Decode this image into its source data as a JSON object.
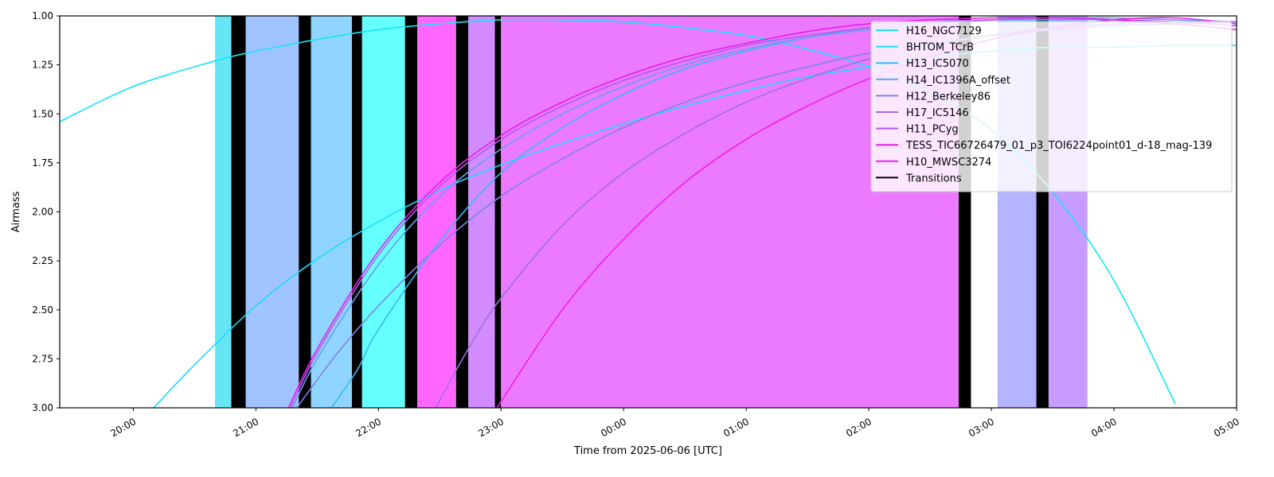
{
  "chart_data": {
    "type": "line",
    "title": "",
    "xlabel": "Time from 2025-06-06 [UTC]",
    "ylabel": "Airmass",
    "xlim": [
      "2025-06-06 19:24",
      "2025-06-07 05:00"
    ],
    "ylim": [
      3.0,
      1.0
    ],
    "y_inverted": true,
    "x_ticks": [
      {
        "time": "2025-06-06 20:00",
        "label": "20:00"
      },
      {
        "time": "2025-06-06 21:00",
        "label": "21:00"
      },
      {
        "time": "2025-06-06 22:00",
        "label": "22:00"
      },
      {
        "time": "2025-06-06 23:00",
        "label": "23:00"
      },
      {
        "time": "2025-06-07 00:00",
        "label": "00:00"
      },
      {
        "time": "2025-06-07 01:00",
        "label": "01:00"
      },
      {
        "time": "2025-06-07 02:00",
        "label": "02:00"
      },
      {
        "time": "2025-06-07 03:00",
        "label": "03:00"
      },
      {
        "time": "2025-06-07 04:00",
        "label": "04:00"
      },
      {
        "time": "2025-06-07 05:00",
        "label": "05:00"
      }
    ],
    "y_ticks": [
      {
        "value": 1.0,
        "label": "1.00"
      },
      {
        "value": 1.25,
        "label": "1.25"
      },
      {
        "value": 1.5,
        "label": "1.50"
      },
      {
        "value": 1.75,
        "label": "1.75"
      },
      {
        "value": 2.0,
        "label": "2.00"
      },
      {
        "value": 2.25,
        "label": "2.25"
      },
      {
        "value": 2.5,
        "label": "2.50"
      },
      {
        "value": 2.75,
        "label": "2.75"
      },
      {
        "value": 3.0,
        "label": "3.00"
      }
    ],
    "grid": false,
    "legend_position": "top-right",
    "observation_blocks": [
      {
        "start": "2025-06-06 20:40",
        "end": "2025-06-06 20:48",
        "color": "#66e6f5"
      },
      {
        "start": "2025-06-06 20:48",
        "end": "2025-06-06 20:55",
        "color": "#000000"
      },
      {
        "start": "2025-06-06 20:55",
        "end": "2025-06-06 21:21",
        "color": "#a0c4ff"
      },
      {
        "start": "2025-06-06 21:21",
        "end": "2025-06-06 21:27",
        "color": "#000000"
      },
      {
        "start": "2025-06-06 21:27",
        "end": "2025-06-06 21:47",
        "color": "#90d5ff"
      },
      {
        "start": "2025-06-06 21:47",
        "end": "2025-06-06 21:52",
        "color": "#000000"
      },
      {
        "start": "2025-06-06 21:52",
        "end": "2025-06-06 22:13",
        "color": "#66ffff"
      },
      {
        "start": "2025-06-06 22:13",
        "end": "2025-06-06 22:19",
        "color": "#000000"
      },
      {
        "start": "2025-06-06 22:19",
        "end": "2025-06-06 22:38",
        "color": "#ff66ff"
      },
      {
        "start": "2025-06-06 22:38",
        "end": "2025-06-06 22:44",
        "color": "#000000"
      },
      {
        "start": "2025-06-06 22:44",
        "end": "2025-06-06 22:57",
        "color": "#d28cff"
      },
      {
        "start": "2025-06-06 22:57",
        "end": "2025-06-06 23:00",
        "color": "#000000"
      },
      {
        "start": "2025-06-06 23:00",
        "end": "2025-06-07 02:44",
        "color": "#eb7aff"
      },
      {
        "start": "2025-06-07 02:44",
        "end": "2025-06-07 02:50",
        "color": "#000000"
      },
      {
        "start": "2025-06-07 03:03",
        "end": "2025-06-07 03:22",
        "color": "#b4b4ff"
      },
      {
        "start": "2025-06-07 03:22",
        "end": "2025-06-07 03:28",
        "color": "#000000"
      },
      {
        "start": "2025-06-07 03:28",
        "end": "2025-06-07 03:47",
        "color": "#c89cff"
      }
    ],
    "series": [
      {
        "name": "H16_NGC7129",
        "color": "#14e6f5",
        "points": [
          [
            "2025-06-06 19:24",
            1.54
          ],
          [
            "2025-06-06 20:00",
            1.36
          ],
          [
            "2025-06-06 20:40",
            1.23
          ],
          [
            "2025-06-06 21:00",
            1.18
          ],
          [
            "2025-06-06 21:30",
            1.12
          ],
          [
            "2025-06-06 22:00",
            1.07
          ],
          [
            "2025-06-06 22:30",
            1.04
          ],
          [
            "2025-06-06 23:00",
            1.02
          ],
          [
            "2025-06-06 23:30",
            1.02
          ],
          [
            "2025-06-07 00:00",
            1.03
          ],
          [
            "2025-06-07 00:30",
            1.06
          ],
          [
            "2025-06-07 01:00",
            1.1
          ],
          [
            "2025-06-07 01:30",
            1.17
          ],
          [
            "2025-06-07 02:00",
            1.26
          ],
          [
            "2025-06-07 02:30",
            1.39
          ],
          [
            "2025-06-07 03:00",
            1.58
          ],
          [
            "2025-06-07 03:30",
            1.9
          ],
          [
            "2025-06-07 04:00",
            2.35
          ],
          [
            "2025-06-07 04:30",
            2.98
          ]
        ]
      },
      {
        "name": "BHTOM_TCrB",
        "color": "#1cdbff",
        "points": [
          [
            "2025-06-06 20:10",
            3.0
          ],
          [
            "2025-06-06 20:30",
            2.78
          ],
          [
            "2025-06-06 21:00",
            2.48
          ],
          [
            "2025-06-06 21:30",
            2.24
          ],
          [
            "2025-06-06 22:00",
            2.05
          ],
          [
            "2025-06-06 22:30",
            1.89
          ],
          [
            "2025-06-06 23:00",
            1.76
          ],
          [
            "2025-06-06 23:30",
            1.65
          ],
          [
            "2025-06-07 00:00",
            1.55
          ],
          [
            "2025-06-07 00:30",
            1.46
          ],
          [
            "2025-06-07 01:00",
            1.38
          ],
          [
            "2025-06-07 01:30",
            1.31
          ],
          [
            "2025-06-07 02:00",
            1.26
          ],
          [
            "2025-06-07 02:30",
            1.21
          ],
          [
            "2025-06-07 03:00",
            1.18
          ],
          [
            "2025-06-07 03:30",
            1.16
          ],
          [
            "2025-06-07 04:00",
            1.16
          ],
          [
            "2025-06-07 04:30",
            1.15
          ],
          [
            "2025-06-07 05:00",
            1.15
          ]
        ]
      },
      {
        "name": "H13_IC5070",
        "color": "#38b8f5",
        "points": [
          [
            "2025-06-06 21:37",
            3.0
          ],
          [
            "2025-06-06 21:50",
            2.8
          ],
          [
            "2025-06-06 22:00",
            2.6
          ],
          [
            "2025-06-06 22:30",
            2.15
          ],
          [
            "2025-06-06 23:00",
            1.8
          ],
          [
            "2025-06-06 23:30",
            1.57
          ],
          [
            "2025-06-07 00:00",
            1.4
          ],
          [
            "2025-06-07 00:30",
            1.27
          ],
          [
            "2025-06-07 01:00",
            1.18
          ],
          [
            "2025-06-07 01:30",
            1.11
          ],
          [
            "2025-06-07 02:00",
            1.06
          ],
          [
            "2025-06-07 02:30",
            1.03
          ],
          [
            "2025-06-07 03:00",
            1.02
          ],
          [
            "2025-06-07 03:30",
            1.02
          ],
          [
            "2025-06-07 04:00",
            1.02
          ],
          [
            "2025-06-07 04:30",
            1.03
          ],
          [
            "2025-06-07 05:00",
            1.05
          ]
        ]
      },
      {
        "name": "H14_IC1396A_offset",
        "color": "#6a9ef0",
        "points": [
          [
            "2025-06-06 21:18",
            3.0
          ],
          [
            "2025-06-06 21:30",
            2.75
          ],
          [
            "2025-06-06 22:00",
            2.27
          ],
          [
            "2025-06-06 22:30",
            1.92
          ],
          [
            "2025-06-06 23:00",
            1.68
          ],
          [
            "2025-06-06 23:30",
            1.5
          ],
          [
            "2025-06-07 00:00",
            1.36
          ],
          [
            "2025-06-07 00:30",
            1.25
          ],
          [
            "2025-06-07 01:00",
            1.17
          ],
          [
            "2025-06-07 01:30",
            1.11
          ],
          [
            "2025-06-07 02:00",
            1.07
          ],
          [
            "2025-06-07 02:30",
            1.04
          ],
          [
            "2025-06-07 03:00",
            1.02
          ],
          [
            "2025-06-07 03:30",
            1.01
          ],
          [
            "2025-06-07 04:00",
            1.01
          ],
          [
            "2025-06-07 04:30",
            1.02
          ],
          [
            "2025-06-07 05:00",
            1.03
          ]
        ]
      },
      {
        "name": "H12_Berkeley86",
        "color": "#8080ee",
        "points": [
          [
            "2025-06-06 21:20",
            3.0
          ],
          [
            "2025-06-06 21:40",
            2.72
          ],
          [
            "2025-06-06 22:00",
            2.48
          ],
          [
            "2025-06-06 22:30",
            2.17
          ],
          [
            "2025-06-06 23:00",
            1.92
          ],
          [
            "2025-06-06 23:30",
            1.73
          ],
          [
            "2025-06-07 00:00",
            1.57
          ],
          [
            "2025-06-07 00:30",
            1.44
          ],
          [
            "2025-06-07 01:00",
            1.34
          ],
          [
            "2025-06-07 01:30",
            1.26
          ],
          [
            "2025-06-07 02:00",
            1.19
          ],
          [
            "2025-06-07 02:30",
            1.14
          ],
          [
            "2025-06-07 03:00",
            1.1
          ],
          [
            "2025-06-07 03:30",
            1.07
          ],
          [
            "2025-06-07 04:00",
            1.05
          ],
          [
            "2025-06-07 04:30",
            1.04
          ],
          [
            "2025-06-07 05:00",
            1.03
          ]
        ]
      },
      {
        "name": "H17_IC5146",
        "color": "#a06ee8",
        "points": [
          [
            "2025-06-06 22:28",
            3.0
          ],
          [
            "2025-06-06 22:45",
            2.68
          ],
          [
            "2025-06-06 23:00",
            2.44
          ],
          [
            "2025-06-06 23:30",
            2.07
          ],
          [
            "2025-06-07 00:00",
            1.8
          ],
          [
            "2025-06-07 00:30",
            1.6
          ],
          [
            "2025-06-07 01:00",
            1.44
          ],
          [
            "2025-06-07 01:30",
            1.32
          ],
          [
            "2025-06-07 02:00",
            1.22
          ],
          [
            "2025-06-07 02:30",
            1.15
          ],
          [
            "2025-06-07 03:00",
            1.1
          ],
          [
            "2025-06-07 03:30",
            1.06
          ],
          [
            "2025-06-07 04:00",
            1.04
          ],
          [
            "2025-06-07 04:30",
            1.03
          ],
          [
            "2025-06-07 05:00",
            1.03
          ]
        ]
      },
      {
        "name": "H11_PCyg",
        "color": "#b45af0",
        "points": [
          [
            "2025-06-06 21:17",
            3.0
          ],
          [
            "2025-06-06 21:30",
            2.72
          ],
          [
            "2025-06-06 22:00",
            2.22
          ],
          [
            "2025-06-06 22:30",
            1.87
          ],
          [
            "2025-06-06 23:00",
            1.63
          ],
          [
            "2025-06-06 23:30",
            1.46
          ],
          [
            "2025-06-07 00:00",
            1.33
          ],
          [
            "2025-06-07 00:30",
            1.23
          ],
          [
            "2025-06-07 01:00",
            1.15
          ],
          [
            "2025-06-07 01:30",
            1.1
          ],
          [
            "2025-06-07 02:00",
            1.06
          ],
          [
            "2025-06-07 02:30",
            1.03
          ],
          [
            "2025-06-07 03:00",
            1.02
          ],
          [
            "2025-06-07 03:30",
            1.01
          ],
          [
            "2025-06-07 04:00",
            1.02
          ],
          [
            "2025-06-07 04:30",
            1.03
          ],
          [
            "2025-06-07 05:00",
            1.05
          ]
        ]
      },
      {
        "name": "TESS_TIC66726479_01_p3_TOI6224point01_d-18_mag-139",
        "color": "#e61ee6",
        "points": [
          [
            "2025-06-06 21:16",
            3.0
          ],
          [
            "2025-06-06 21:30",
            2.7
          ],
          [
            "2025-06-06 22:00",
            2.2
          ],
          [
            "2025-06-06 22:30",
            1.85
          ],
          [
            "2025-06-06 23:00",
            1.61
          ],
          [
            "2025-06-06 23:30",
            1.44
          ],
          [
            "2025-06-07 00:00",
            1.31
          ],
          [
            "2025-06-07 00:30",
            1.21
          ],
          [
            "2025-06-07 01:00",
            1.14
          ],
          [
            "2025-06-07 01:30",
            1.08
          ],
          [
            "2025-06-07 02:00",
            1.04
          ],
          [
            "2025-06-07 02:30",
            1.02
          ],
          [
            "2025-06-07 03:00",
            1.01
          ],
          [
            "2025-06-07 03:30",
            1.01
          ],
          [
            "2025-06-07 04:00",
            1.02
          ],
          [
            "2025-06-07 04:30",
            1.04
          ],
          [
            "2025-06-07 05:00",
            1.07
          ]
        ]
      },
      {
        "name": "H10_MWSC3274",
        "color": "#f01ef0",
        "points": [
          [
            "2025-06-06 22:58",
            3.0
          ],
          [
            "2025-06-06 23:30",
            2.5
          ],
          [
            "2025-06-07 00:00",
            2.14
          ],
          [
            "2025-06-07 00:30",
            1.85
          ],
          [
            "2025-06-07 01:00",
            1.63
          ],
          [
            "2025-06-07 01:30",
            1.46
          ],
          [
            "2025-06-07 02:00",
            1.32
          ],
          [
            "2025-06-07 02:30",
            1.21
          ],
          [
            "2025-06-07 03:00",
            1.12
          ],
          [
            "2025-06-07 03:30",
            1.06
          ],
          [
            "2025-06-07 04:00",
            1.02
          ],
          [
            "2025-06-07 04:30",
            1.01
          ],
          [
            "2025-06-07 05:00",
            1.04
          ]
        ]
      }
    ],
    "legend": [
      {
        "label": "H16_NGC7129",
        "color": "#14e6f5"
      },
      {
        "label": "BHTOM_TCrB",
        "color": "#1cdbff"
      },
      {
        "label": "H13_IC5070",
        "color": "#38b8f5"
      },
      {
        "label": "H14_IC1396A_offset",
        "color": "#6a9ef0"
      },
      {
        "label": "H12_Berkeley86",
        "color": "#8080ee"
      },
      {
        "label": "H17_IC5146",
        "color": "#a06ee8"
      },
      {
        "label": "H11_PCyg",
        "color": "#b45af0"
      },
      {
        "label": "TESS_TIC66726479_01_p3_TOI6224point01_d-18_mag-139",
        "color": "#e61ee6"
      },
      {
        "label": "H10_MWSC3274",
        "color": "#f01ef0"
      },
      {
        "label": "Transitions",
        "color": "#000000"
      }
    ]
  }
}
